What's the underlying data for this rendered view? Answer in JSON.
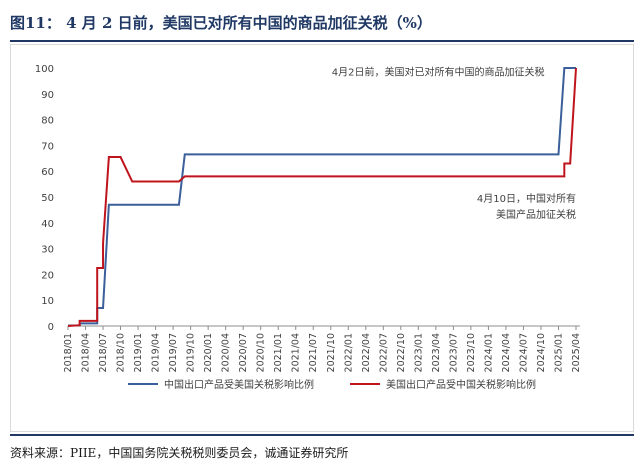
{
  "header": {
    "title": "图11：  4 月 2 日前，美国已对所有中国的商品加征关税（%）"
  },
  "footer": {
    "source": "资料来源：PIIE，中国国务院关税税则委员会，诚通证券研究所"
  },
  "chart_data": {
    "type": "line",
    "title": "",
    "xlabel": "",
    "ylabel": "",
    "ylim": [
      0,
      100
    ],
    "yticks": [
      0,
      10,
      20,
      30,
      40,
      50,
      60,
      70,
      80,
      90,
      100
    ],
    "xticks": [
      "2018/01",
      "2018/04",
      "2018/07",
      "2018/10",
      "2019/01",
      "2019/04",
      "2019/07",
      "2019/10",
      "2020/01",
      "2020/04",
      "2020/07",
      "2020/10",
      "2021/01",
      "2021/04",
      "2021/07",
      "2021/10",
      "2022/01",
      "2022/04",
      "2022/07",
      "2022/10",
      "2023/01",
      "2023/04",
      "2023/07",
      "2023/10",
      "2024/01",
      "2024/04",
      "2024/07",
      "2024/10",
      "2025/01",
      "2025/04"
    ],
    "grid": "none",
    "legend": "bottom",
    "series": [
      {
        "name": "中国出口产品受美国关税影响比例",
        "color": "#3a5f9a",
        "points": [
          [
            "2018/01",
            0.2
          ],
          [
            "2018/03",
            0.2
          ],
          [
            "2018/03",
            1.0
          ],
          [
            "2018/06",
            1.0
          ],
          [
            "2018/06",
            7.0
          ],
          [
            "2018/07",
            7.0
          ],
          [
            "2018/08",
            47.0
          ],
          [
            "2019/08",
            47.0
          ],
          [
            "2019/09",
            66.5
          ],
          [
            "2025/01",
            66.5
          ],
          [
            "2025/02",
            100.0
          ],
          [
            "2025/04",
            100.0
          ]
        ]
      },
      {
        "name": "美国出口产品受中国关税影响比例",
        "color": "#c0141d",
        "points": [
          [
            "2018/01",
            0.0
          ],
          [
            "2018/03",
            0.3
          ],
          [
            "2018/03",
            2.0
          ],
          [
            "2018/06",
            2.0
          ],
          [
            "2018/06",
            22.5
          ],
          [
            "2018/07",
            22.5
          ],
          [
            "2018/07",
            32.0
          ],
          [
            "2018/08",
            65.5
          ],
          [
            "2018/10",
            65.5
          ],
          [
            "2018/12",
            56.0
          ],
          [
            "2019/08",
            56.0
          ],
          [
            "2019/09",
            58.0
          ],
          [
            "2025/02",
            58.0
          ],
          [
            "2025/02",
            63.0
          ],
          [
            "2025/03",
            63.0
          ],
          [
            "2025/04",
            100.0
          ]
        ]
      }
    ],
    "annotations": [
      {
        "lines": [
          "4月2日前，美国对已对所有中国的商品加征关税"
        ],
        "x": "2025/01",
        "y": 97,
        "anchor": "end"
      },
      {
        "lines": [
          "4月10日，中国对所有",
          "美国产品加征关税"
        ],
        "x": "2025/04",
        "y": 48,
        "anchor": "end"
      }
    ]
  }
}
